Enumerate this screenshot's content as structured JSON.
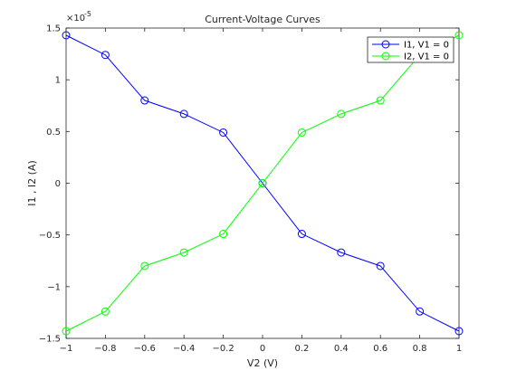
{
  "chart_data": {
    "type": "line",
    "title": "Current-Voltage Curves",
    "xlabel": "V2 (V)",
    "ylabel": "I1 , I2 (A)",
    "exponent_label": "×10",
    "exponent_power": "-5",
    "xlim": [
      -1,
      1
    ],
    "ylim": [
      -1.5e-05,
      1.5e-05
    ],
    "xticks": [
      -1,
      -0.8,
      -0.6,
      -0.4,
      -0.2,
      0,
      0.2,
      0.4,
      0.6,
      0.8,
      1
    ],
    "xtick_labels": [
      "−1",
      "−0.8",
      "−0.6",
      "−0.4",
      "−0.2",
      "0",
      "0.2",
      "0.4",
      "0.6",
      "0.8",
      "1"
    ],
    "yticks": [
      -1.5e-05,
      -1e-05,
      -5e-06,
      0,
      5e-06,
      1e-05,
      1.5e-05
    ],
    "ytick_labels": [
      "−1.5",
      "−1",
      "−0.5",
      "0",
      "0.5",
      "1",
      "1.5"
    ],
    "grid": false,
    "legend_placement": "top-right",
    "x": [
      -1,
      -0.8,
      -0.6,
      -0.4,
      -0.2,
      0,
      0.2,
      0.4,
      0.6,
      0.8,
      1
    ],
    "series": [
      {
        "name": "I1, V1 = 0",
        "color": "#0000ff",
        "marker": "circle",
        "values": [
          1.43e-05,
          1.24e-05,
          8e-06,
          6.7e-06,
          4.9e-06,
          0,
          -4.9e-06,
          -6.7e-06,
          -8e-06,
          -1.24e-05,
          -1.43e-05
        ]
      },
      {
        "name": "I2, V1 = 0",
        "color": "#00ff00",
        "marker": "circle",
        "values": [
          -1.43e-05,
          -1.24e-05,
          -8e-06,
          -6.7e-06,
          -4.9e-06,
          0,
          4.9e-06,
          6.7e-06,
          8e-06,
          1.24e-05,
          1.43e-05
        ]
      }
    ]
  }
}
